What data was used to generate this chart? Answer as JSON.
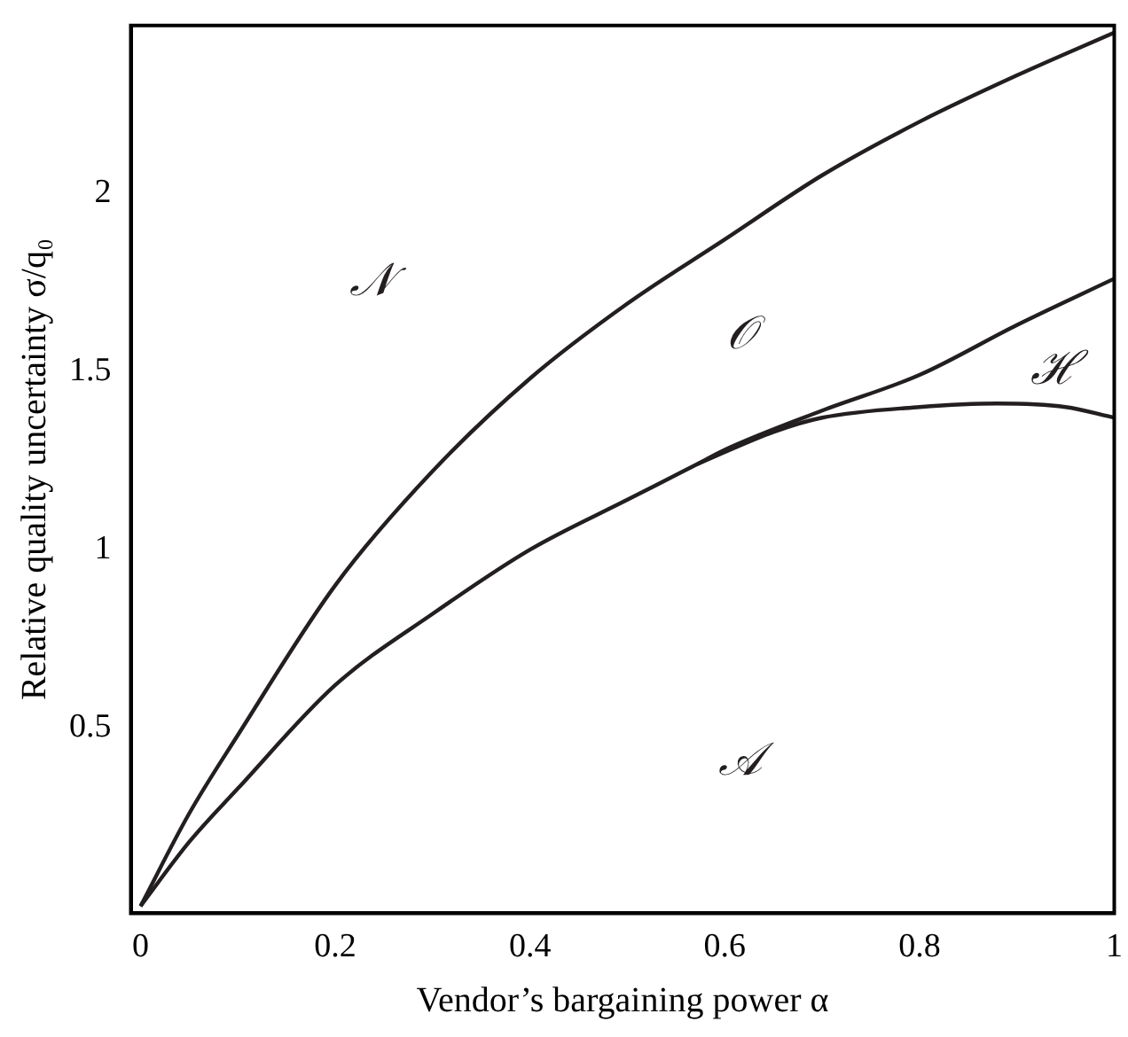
{
  "chart_data": {
    "type": "line",
    "xlabel": "Vendor’s bargaining power α",
    "ylabel": "Relative quality uncertainty σ/q₀",
    "series": [
      {
        "color": "#231f20",
        "x": [
          0,
          0.05,
          0.1,
          0.2,
          0.3,
          0.4,
          0.5,
          0.6,
          0.7,
          0.8,
          0.9,
          1
        ],
        "values": [
          0,
          0.26,
          0.48,
          0.9,
          1.22,
          1.48,
          1.69,
          1.87,
          2.05,
          2.2,
          2.33,
          2.45
        ]
      },
      {
        "color": "#231f20",
        "x": [
          0,
          0.05,
          0.1,
          0.2,
          0.3,
          0.4,
          0.5,
          0.572,
          0.6,
          0.7,
          0.8,
          0.9,
          1
        ],
        "values": [
          0,
          0.18,
          0.33,
          0.62,
          0.82,
          1.0,
          1.14,
          1.24,
          1.28,
          1.39,
          1.49,
          1.63,
          1.76
        ]
      },
      {
        "color": "#231f20",
        "x": [
          0.572,
          0.65,
          0.7,
          0.8,
          0.88,
          0.95,
          1
        ],
        "values": [
          1.24,
          1.33,
          1.37,
          1.4,
          1.41,
          1.4,
          1.37
        ]
      }
    ],
    "xlim": [
      -0.01,
      1
    ],
    "ylim": [
      -0.02,
      2.47
    ],
    "xticks": [
      0,
      0.2,
      0.4,
      0.6,
      0.8,
      1
    ],
    "yticks": [
      0.5,
      1,
      1.5,
      2
    ],
    "grid": false,
    "legend": false,
    "marker": "none",
    "line_style": "solid",
    "annotations": [
      "𝒩",
      "𝒪",
      "ℋ",
      "𝒜"
    ]
  }
}
